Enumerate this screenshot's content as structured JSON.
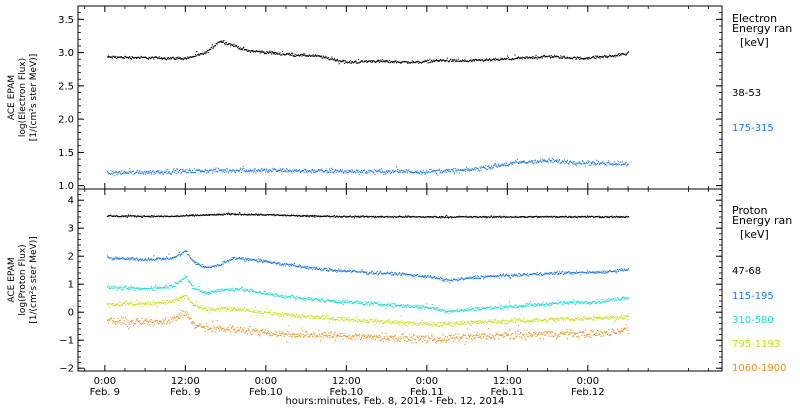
{
  "chart_data": [
    {
      "type": "scatter",
      "panel": "electron",
      "ylabel": [
        "ACE EPAM",
        "log(Electron Flux)",
        "[1/(cm²s ster MeV)]"
      ],
      "ylim": [
        0.95,
        3.7
      ],
      "yticks": [
        1.0,
        1.5,
        2.0,
        2.5,
        3.0,
        3.5
      ],
      "ytick_labels": [
        "1.0",
        "1.5",
        "2.0",
        "2.5",
        "3.0",
        "3.5"
      ],
      "legend_title": [
        "Electron",
        "Energy ran",
        "[keV]"
      ],
      "series": [
        {
          "name": "38-53",
          "color": "#000000",
          "points": [
            [
              0.3,
              2.94
            ],
            [
              6,
              2.93
            ],
            [
              12,
              2.92
            ],
            [
              15,
              3.0
            ],
            [
              17,
              3.18
            ],
            [
              19,
              3.12
            ],
            [
              21,
              3.04
            ],
            [
              26,
              2.99
            ],
            [
              32,
              2.95
            ],
            [
              36,
              2.86
            ],
            [
              40,
              2.88
            ],
            [
              46,
              2.86
            ],
            [
              50,
              2.89
            ],
            [
              54,
              2.88
            ],
            [
              60,
              2.91
            ],
            [
              66,
              2.95
            ],
            [
              71,
              2.92
            ],
            [
              76,
              2.96
            ],
            [
              78,
              3.0
            ]
          ],
          "noise": 0.03
        },
        {
          "name": "175-315",
          "color": "#1f77d8",
          "points": [
            [
              0.3,
              1.2
            ],
            [
              10,
              1.22
            ],
            [
              20,
              1.24
            ],
            [
              30,
              1.23
            ],
            [
              40,
              1.22
            ],
            [
              48,
              1.22
            ],
            [
              54,
              1.24
            ],
            [
              58,
              1.3
            ],
            [
              62,
              1.36
            ],
            [
              66,
              1.38
            ],
            [
              72,
              1.35
            ],
            [
              78,
              1.34
            ]
          ],
          "noise": 0.05
        }
      ]
    },
    {
      "type": "scatter",
      "panel": "proton",
      "ylabel": [
        "ACE EPAM",
        "log(Proton Flux)",
        "[1/(cm²s ster MeV)]"
      ],
      "ylim": [
        -2.1,
        4.4
      ],
      "yticks": [
        -2,
        -1,
        0,
        1,
        2,
        3,
        4
      ],
      "ytick_labels": [
        "−2",
        "−1",
        "0",
        "1",
        "2",
        "3",
        "4"
      ],
      "legend_title": [
        "Proton",
        "Energy ran",
        "[keV]"
      ],
      "series": [
        {
          "name": "47-68",
          "color": "#000000",
          "points": [
            [
              0.3,
              3.45
            ],
            [
              10,
              3.44
            ],
            [
              14,
              3.48
            ],
            [
              19,
              3.52
            ],
            [
              24,
              3.5
            ],
            [
              30,
              3.45
            ],
            [
              40,
              3.43
            ],
            [
              50,
              3.42
            ],
            [
              60,
              3.42
            ],
            [
              70,
              3.43
            ],
            [
              78,
              3.42
            ]
          ],
          "noise": 0.04
        },
        {
          "name": "115-195",
          "color": "#1f77d8",
          "points": [
            [
              0.3,
              1.95
            ],
            [
              6,
              1.9
            ],
            [
              10,
              1.95
            ],
            [
              12,
              2.2
            ],
            [
              13,
              1.85
            ],
            [
              15,
              1.6
            ],
            [
              17,
              1.7
            ],
            [
              19,
              1.95
            ],
            [
              22,
              1.9
            ],
            [
              26,
              1.75
            ],
            [
              32,
              1.55
            ],
            [
              38,
              1.45
            ],
            [
              44,
              1.38
            ],
            [
              48,
              1.3
            ],
            [
              51,
              1.15
            ],
            [
              56,
              1.28
            ],
            [
              62,
              1.35
            ],
            [
              68,
              1.42
            ],
            [
              74,
              1.45
            ],
            [
              78,
              1.55
            ]
          ],
          "noise": 0.08
        },
        {
          "name": "310-580",
          "color": "#17d9d9",
          "points": [
            [
              0.3,
              0.9
            ],
            [
              6,
              0.85
            ],
            [
              10,
              0.95
            ],
            [
              12,
              1.3
            ],
            [
              13,
              0.9
            ],
            [
              15,
              0.7
            ],
            [
              17,
              0.8
            ],
            [
              20,
              0.85
            ],
            [
              26,
              0.6
            ],
            [
              32,
              0.45
            ],
            [
              38,
              0.35
            ],
            [
              44,
              0.25
            ],
            [
              48,
              0.2
            ],
            [
              51,
              0.05
            ],
            [
              56,
              0.15
            ],
            [
              62,
              0.25
            ],
            [
              68,
              0.35
            ],
            [
              74,
              0.4
            ],
            [
              78,
              0.55
            ]
          ],
          "noise": 0.1
        },
        {
          "name": "795-1193",
          "color": "#c8dc14",
          "points": [
            [
              0.3,
              0.3
            ],
            [
              6,
              0.32
            ],
            [
              10,
              0.4
            ],
            [
              12,
              0.6
            ],
            [
              13,
              0.3
            ],
            [
              15,
              0.1
            ],
            [
              18,
              0.15
            ],
            [
              22,
              0.05
            ],
            [
              28,
              -0.1
            ],
            [
              34,
              -0.2
            ],
            [
              40,
              -0.3
            ],
            [
              46,
              -0.38
            ],
            [
              50,
              -0.42
            ],
            [
              54,
              -0.35
            ],
            [
              60,
              -0.3
            ],
            [
              66,
              -0.25
            ],
            [
              72,
              -0.2
            ],
            [
              78,
              -0.15
            ]
          ],
          "noise": 0.12
        },
        {
          "name": "1060-1900",
          "color": "#e89020",
          "points": [
            [
              0.3,
              -0.3
            ],
            [
              6,
              -0.35
            ],
            [
              10,
              -0.25
            ],
            [
              12,
              0.0
            ],
            [
              13,
              -0.4
            ],
            [
              15,
              -0.55
            ],
            [
              20,
              -0.6
            ],
            [
              26,
              -0.75
            ],
            [
              32,
              -0.8
            ],
            [
              38,
              -0.85
            ],
            [
              44,
              -0.9
            ],
            [
              50,
              -0.95
            ],
            [
              56,
              -0.85
            ],
            [
              62,
              -0.8
            ],
            [
              68,
              -0.75
            ],
            [
              74,
              -0.75
            ],
            [
              78,
              -0.6
            ]
          ],
          "noise": 0.2
        }
      ]
    }
  ],
  "time_axis": {
    "xlim": [
      -4,
      92
    ],
    "ticks": [
      {
        "x": 0,
        "time": "0:00",
        "date": "Feb. 9"
      },
      {
        "x": 12,
        "time": "12:00",
        "date": "Feb. 9"
      },
      {
        "x": 24,
        "time": "0:00",
        "date": "Feb.10"
      },
      {
        "x": 36,
        "time": "12:00",
        "date": "Feb.10"
      },
      {
        "x": 48,
        "time": "0:00",
        "date": "Feb.11"
      },
      {
        "x": 60,
        "time": "12:00",
        "date": "Feb.11"
      },
      {
        "x": 72,
        "time": "0:00",
        "date": "Feb.12"
      }
    ],
    "xlabel": "hours:minutes, Feb. 8, 2014 - Feb. 12, 2014"
  }
}
